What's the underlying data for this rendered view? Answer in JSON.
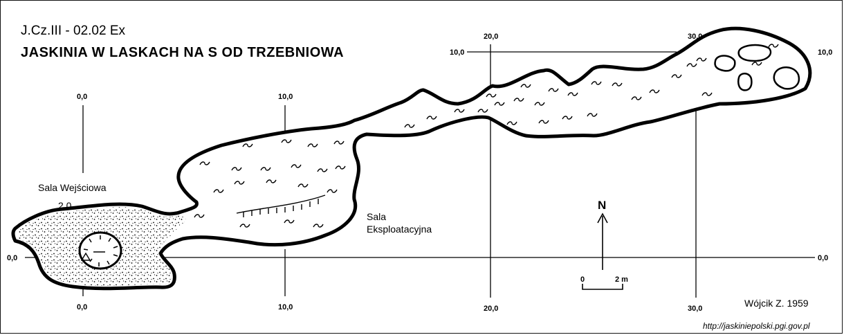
{
  "header": {
    "code": "J.Cz.III - 02.02 Ex",
    "title": "JASKINIA W LASKACH NA S OD TRZEBNIOWA"
  },
  "grid_labels": {
    "v0_top": "0,0",
    "v0_bottom": "0,0",
    "v10_top": "10,0",
    "v10_bottom": "10,0",
    "v20_top": "20,0",
    "v20_bottom": "20,0",
    "v30_top": "30,0",
    "v30_bottom": "30,0",
    "h0_left": "0,0",
    "h0_right": "0,0",
    "h10_left": "10,0",
    "h10_right": "10,0"
  },
  "labels": {
    "entrance_hall": "Sala Wejściowa",
    "entrance_height": "2,0",
    "exploitation_hall_line1": "Sala",
    "exploitation_hall_line2": "Eksploatacyjna"
  },
  "north_arrow": {
    "label": "N"
  },
  "scale_bar": {
    "start": "0",
    "end": "2 m"
  },
  "author": "Wójcik Z. 1959",
  "source_url": "http://jaskiniepolski.pgi.gov.pl"
}
